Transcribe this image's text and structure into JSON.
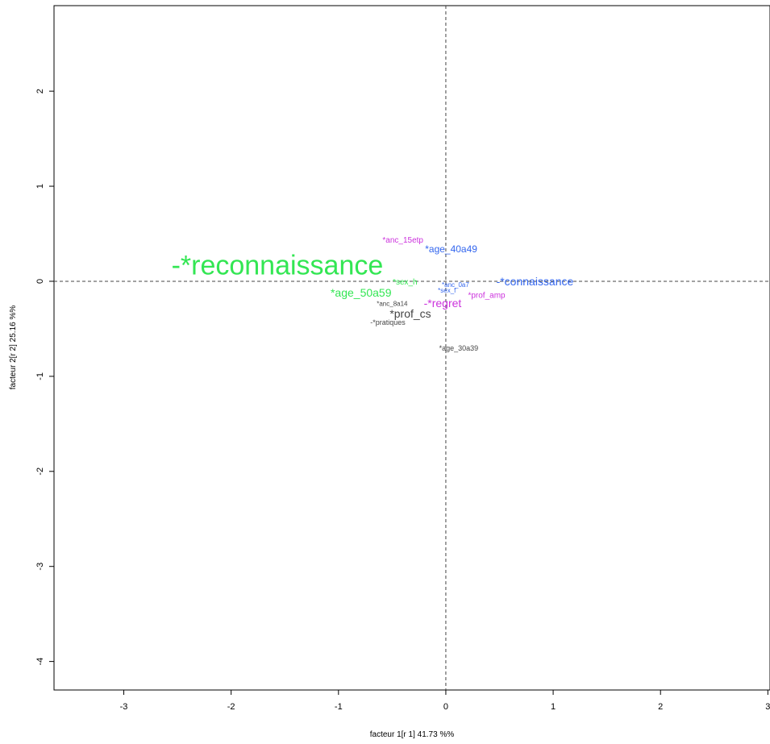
{
  "chart_data": {
    "type": "scatter",
    "title": "",
    "xlabel": "facteur 1[r 1] 41.73 %%",
    "ylabel": "facteur 2[r 2] 25.16 %%",
    "xlim": [
      -3.65,
      3.02
    ],
    "ylim": [
      -4.3,
      2.9
    ],
    "xticks": [
      "-3",
      "-2",
      "-1",
      "0",
      "1",
      "2",
      "3"
    ],
    "yticks": [
      "-4",
      "-3",
      "-2",
      "-1",
      "0",
      "1",
      "2"
    ],
    "reference_lines": {
      "x": 0,
      "y": 0,
      "style": "dashed"
    },
    "grid": false,
    "legend": "none",
    "points": [
      {
        "label": "-*reconnaissance",
        "x": -1.57,
        "y": 0.15,
        "size": 34,
        "color": "#33e653"
      },
      {
        "label": "*anc_15etp",
        "x": -0.4,
        "y": 0.43,
        "size": 10,
        "color": "#cc33dd"
      },
      {
        "label": "*age_40a49",
        "x": 0.05,
        "y": 0.33,
        "size": 12,
        "color": "#3366ee"
      },
      {
        "label": "*sex_h",
        "x": -0.38,
        "y": -0.01,
        "size": 10,
        "color": "#33e653"
      },
      {
        "label": "*anc_0a7",
        "x": 0.09,
        "y": -0.04,
        "size": 8,
        "color": "#3366ee"
      },
      {
        "label": "-*connaissance",
        "x": 0.83,
        "y": -0.01,
        "size": 14,
        "color": "#3366ee"
      },
      {
        "label": "*age_50a59",
        "x": -0.79,
        "y": -0.13,
        "size": 14,
        "color": "#33e653"
      },
      {
        "label": "*sex_f",
        "x": 0.01,
        "y": -0.1,
        "size": 8,
        "color": "#3366ee"
      },
      {
        "label": "*prof_amp",
        "x": 0.38,
        "y": -0.15,
        "size": 10,
        "color": "#cc33dd"
      },
      {
        "label": "*anc_8a14",
        "x": -0.5,
        "y": -0.24,
        "size": 8,
        "color": "#444444"
      },
      {
        "label": "-*regret",
        "x": -0.03,
        "y": -0.24,
        "size": 14,
        "color": "#cc33dd"
      },
      {
        "label": "*prof_cs",
        "x": -0.33,
        "y": -0.35,
        "size": 14,
        "color": "#444444"
      },
      {
        "label": "-*pratiques",
        "x": -0.54,
        "y": -0.44,
        "size": 9,
        "color": "#444444"
      },
      {
        "label": "*age_30a39",
        "x": 0.12,
        "y": -0.71,
        "size": 9,
        "color": "#444444"
      }
    ]
  }
}
